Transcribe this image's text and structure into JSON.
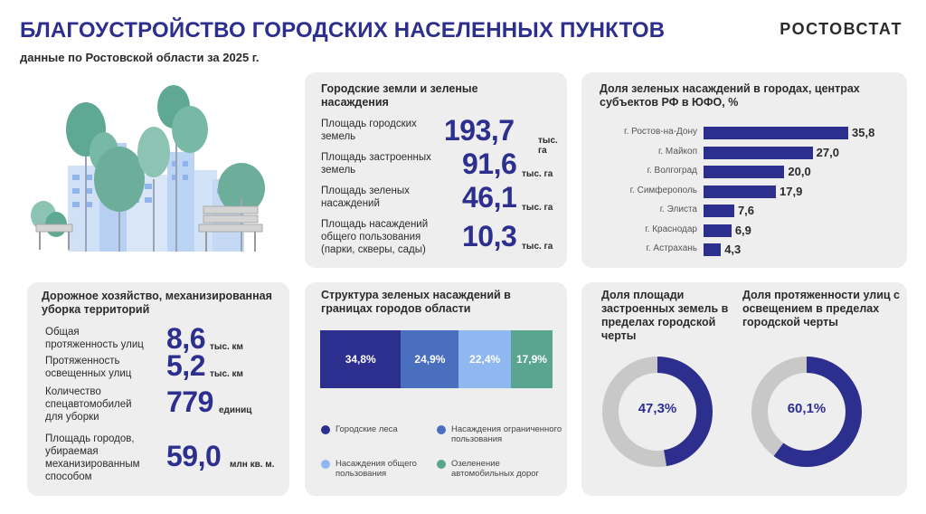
{
  "header": {
    "title": "БЛАГОУСТРОЙСТВО ГОРОДСКИХ НАСЕЛЕННЫХ ПУНКТОВ",
    "subtitle": "данные по Ростовской области за 2025 г.",
    "brand": "РОСТОВСТАТ"
  },
  "colors": {
    "primary": "#2d2f8f",
    "mid_blue": "#4a6fbf",
    "light_blue": "#8fb8f0",
    "teal": "#5aa58f",
    "donut_bg": "#c8c8c8",
    "card_bg": "#eeeeee"
  },
  "illustration": {
    "icon": "park-city-illustration"
  },
  "land": {
    "title": "Городские земли и зеленые насаждения",
    "items": [
      {
        "label": "Площадь городских земель",
        "value": "193,7",
        "unit": "тыс. га"
      },
      {
        "label": "Площадь застроенных земель",
        "value": "91,6",
        "unit": "тыс. га"
      },
      {
        "label": "Площадь зеленых насаждений",
        "value": "46,1",
        "unit": "тыс. га"
      },
      {
        "label": "Площадь насаждений общего пользования (парки, скверы, сады)",
        "value": "10,3",
        "unit": "тыс. га"
      }
    ]
  },
  "green_share": {
    "title": "Доля зеленых насаждений в городах, центрах субъектов РФ в ЮФО, %",
    "chart_data": {
      "type": "bar",
      "orientation": "horizontal",
      "categories": [
        "г. Ростов-на-Дону",
        "г. Майкоп",
        "г. Волгоград",
        "г. Симферополь",
        "г. Элиста",
        "г. Краснодар",
        "г. Астрахань"
      ],
      "values": [
        35.8,
        27.0,
        20.0,
        17.9,
        7.6,
        6.9,
        4.3
      ],
      "value_labels": [
        "35,8",
        "27,0",
        "20,0",
        "17,9",
        "7,6",
        "6,9",
        "4,3"
      ],
      "xlim": [
        0,
        35.8
      ],
      "grid": false,
      "color": "#2d2f8f"
    }
  },
  "road": {
    "title": "Дорожное хозяйство, механизированная уборка территорий",
    "items": [
      {
        "label": "Общая протяженность улиц",
        "value": "8,6",
        "unit": "тыс. км"
      },
      {
        "label": "Протяженность освещенных улиц",
        "value": "5,2",
        "unit": "тыс. км"
      },
      {
        "label": "Количество спецавтомобилей для уборки",
        "value": "779",
        "unit": "единиц"
      },
      {
        "label": "Площадь городов, убираемая механизированным способом",
        "value": "59,0",
        "unit": "млн кв. м."
      }
    ]
  },
  "structure": {
    "title": "Структура зеленых насаждений в границах городов области",
    "chart_data": {
      "type": "bar",
      "stacked": true,
      "orientation": "horizontal",
      "series": [
        {
          "name": "Городские леса",
          "values": [
            34.8
          ],
          "label": "34,8%",
          "color": "#2d2f8f"
        },
        {
          "name": "Насаждения ограниченного пользования",
          "values": [
            24.9
          ],
          "label": "24,9%",
          "color": "#4a6fbf"
        },
        {
          "name": "Насаждения общего пользования",
          "values": [
            22.4
          ],
          "label": "22,4%",
          "color": "#8fb8f0"
        },
        {
          "name": "Озеленение автомобильных дорог",
          "values": [
            17.9
          ],
          "label": "17,9%",
          "color": "#5aa58f"
        }
      ],
      "legend": "bottom"
    }
  },
  "donuts": {
    "chart_data": [
      {
        "type": "pie",
        "title": "Доля площади застроенных земель в пределах городской черты",
        "values": [
          47.3,
          52.7
        ],
        "center_label": "47,3%",
        "colors": [
          "#2d2f8f",
          "#c8c8c8"
        ]
      },
      {
        "type": "pie",
        "title": "Доля протяженности улиц с освещением в пределах городской черты",
        "values": [
          60.1,
          39.9
        ],
        "center_label": "60,1%",
        "colors": [
          "#2d2f8f",
          "#c8c8c8"
        ]
      }
    ]
  }
}
